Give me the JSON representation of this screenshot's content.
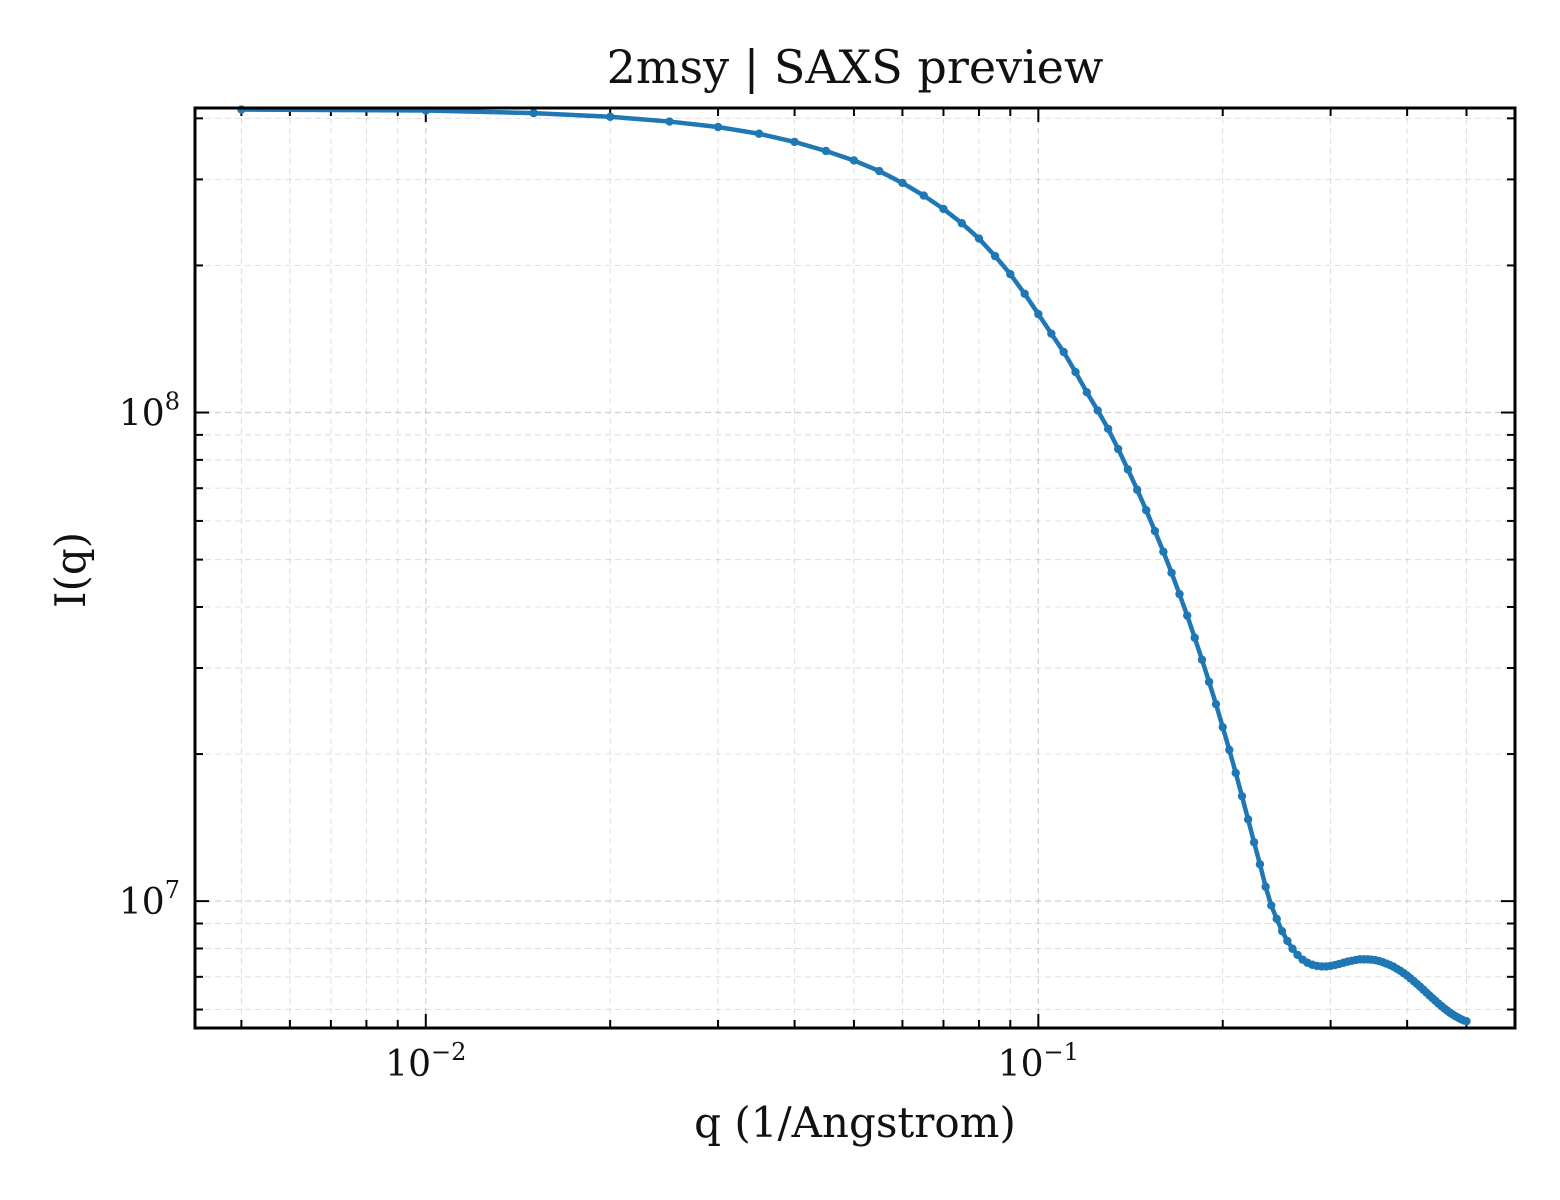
{
  "chart_data": {
    "type": "line",
    "title": "2msy | SAXS preview",
    "xlabel": "q (1/Angstrom)",
    "ylabel": "I(q)",
    "xscale": "log",
    "yscale": "log",
    "xlim": [
      0.0042,
      0.6
    ],
    "ylim": [
      5500000,
      420000000
    ],
    "grid": true,
    "legend": "none",
    "x_ticks": [
      {
        "base": "10",
        "exp": "−2",
        "value": 0.01
      },
      {
        "base": "10",
        "exp": "−1",
        "value": 0.1
      }
    ],
    "y_ticks": [
      {
        "base": "10",
        "exp": "8",
        "value": 100000000
      },
      {
        "base": "10",
        "exp": "7",
        "value": 10000000
      }
    ],
    "series": [
      {
        "color": "#1f77b4",
        "marker": "dot",
        "x": [
          0.005,
          0.01,
          0.015,
          0.02,
          0.025,
          0.03,
          0.035,
          0.04,
          0.045,
          0.05,
          0.055,
          0.06,
          0.065,
          0.07,
          0.075,
          0.08,
          0.085,
          0.09,
          0.095,
          0.1,
          0.105,
          0.11,
          0.115,
          0.12,
          0.125,
          0.13,
          0.135,
          0.14,
          0.145,
          0.15,
          0.155,
          0.16,
          0.165,
          0.17,
          0.175,
          0.18,
          0.185,
          0.19,
          0.195,
          0.2,
          0.205,
          0.21,
          0.215,
          0.22,
          0.225,
          0.23,
          0.235,
          0.24,
          0.245,
          0.25,
          0.255,
          0.26,
          0.265,
          0.27,
          0.275,
          0.28,
          0.285,
          0.29,
          0.295,
          0.3,
          0.305,
          0.31,
          0.315,
          0.32,
          0.325,
          0.33,
          0.335,
          0.34,
          0.345,
          0.35,
          0.355,
          0.36,
          0.365,
          0.37,
          0.375,
          0.38,
          0.385,
          0.39,
          0.395,
          0.4,
          0.405,
          0.41,
          0.415,
          0.42,
          0.425,
          0.43,
          0.435,
          0.44,
          0.445,
          0.45,
          0.455,
          0.46,
          0.465,
          0.47,
          0.475,
          0.48,
          0.485,
          0.49,
          0.495,
          0.5
        ],
        "y": [
          417000000,
          415000000,
          410000000,
          403000000,
          394000000,
          384000000,
          372000000,
          358000000,
          343000000,
          328000000,
          312000000,
          295000000,
          278000000,
          261000000,
          244000000,
          227000000,
          209000000,
          192000000,
          175000000,
          159000000,
          145000000,
          133000000,
          121000000,
          110000000,
          101000000,
          92600000,
          84200000,
          76500000,
          69500000,
          63100000,
          57200000,
          51900000,
          47000000,
          42500000,
          38400000,
          34600000,
          31200000,
          28100000,
          25300000,
          22700000,
          20400000,
          18300000,
          16400000,
          14700000,
          13200000,
          11900000,
          10700000,
          9800000,
          9200000,
          8680000,
          8290000,
          7990000,
          7760000,
          7590000,
          7480000,
          7410000,
          7370000,
          7350000,
          7350000,
          7370000,
          7400000,
          7440000,
          7480000,
          7520000,
          7550000,
          7580000,
          7600000,
          7600000,
          7600000,
          7590000,
          7570000,
          7540000,
          7500000,
          7450000,
          7400000,
          7340000,
          7270000,
          7200000,
          7120000,
          7040000,
          6950000,
          6860000,
          6770000,
          6680000,
          6590000,
          6500000,
          6410000,
          6330000,
          6250000,
          6170000,
          6100000,
          6030000,
          5970000,
          5910000,
          5860000,
          5810000,
          5770000,
          5730000,
          5700000,
          5680000
        ]
      }
    ]
  }
}
